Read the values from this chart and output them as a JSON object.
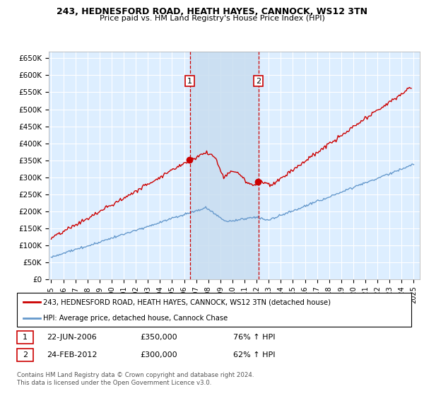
{
  "title1": "243, HEDNESFORD ROAD, HEATH HAYES, CANNOCK, WS12 3TN",
  "title2": "Price paid vs. HM Land Registry's House Price Index (HPI)",
  "legend_line1": "243, HEDNESFORD ROAD, HEATH HAYES, CANNOCK, WS12 3TN (detached house)",
  "legend_line2": "HPI: Average price, detached house, Cannock Chase",
  "sale1_date": "22-JUN-2006",
  "sale1_price": "£350,000",
  "sale1_hpi": "76% ↑ HPI",
  "sale2_date": "24-FEB-2012",
  "sale2_price": "£300,000",
  "sale2_hpi": "62% ↑ HPI",
  "footnote": "Contains HM Land Registry data © Crown copyright and database right 2024.\nThis data is licensed under the Open Government Licence v3.0.",
  "red_color": "#cc0000",
  "blue_color": "#6699cc",
  "plot_bg": "#ddeeff",
  "shade_color": "#c8ddf0",
  "grid_color": "#ffffff",
  "sale1_x": 2006.47,
  "sale2_x": 2012.14,
  "ylim": [
    0,
    670000
  ],
  "xlim_start": 1994.8,
  "xlim_end": 2025.5,
  "yticks": [
    0,
    50000,
    100000,
    150000,
    200000,
    250000,
    300000,
    350000,
    400000,
    450000,
    500000,
    550000,
    600000,
    650000
  ],
  "xtick_years": [
    1995,
    1996,
    1997,
    1998,
    1999,
    2000,
    2001,
    2002,
    2003,
    2004,
    2005,
    2006,
    2007,
    2008,
    2009,
    2010,
    2011,
    2012,
    2013,
    2014,
    2015,
    2016,
    2017,
    2018,
    2019,
    2020,
    2021,
    2022,
    2023,
    2024,
    2025
  ]
}
